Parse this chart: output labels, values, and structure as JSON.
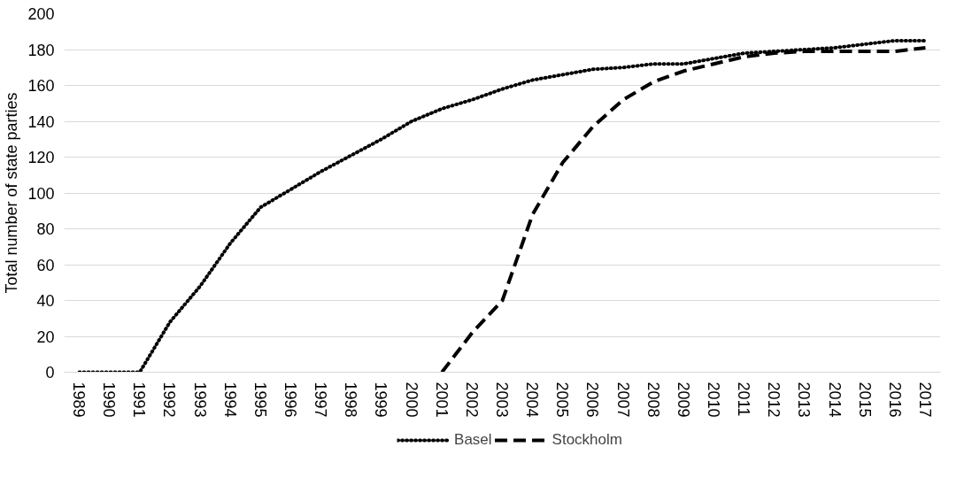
{
  "chart_data": {
    "type": "line",
    "ylabel": "Total number of state parties",
    "categories": [
      "1989",
      "1990",
      "1991",
      "1992",
      "1993",
      "1994",
      "1995",
      "1996",
      "1997",
      "1998",
      "1999",
      "2000",
      "2001",
      "2002",
      "2003",
      "2004",
      "2005",
      "2006",
      "2007",
      "2008",
      "2009",
      "2010",
      "2011",
      "2012",
      "2013",
      "2014",
      "2015",
      "2016",
      "2017"
    ],
    "series": [
      {
        "name": "Basel",
        "color": "#000000",
        "line_style": "dotted",
        "values": [
          0,
          0,
          0,
          28,
          48,
          72,
          92,
          102,
          112,
          121,
          130,
          140,
          147,
          152,
          158,
          163,
          166,
          169,
          170,
          172,
          172,
          175,
          178,
          179,
          180,
          181,
          183,
          185,
          185
        ]
      },
      {
        "name": "Stockholm",
        "color": "#000000",
        "line_style": "dashed",
        "values": [
          null,
          null,
          null,
          null,
          null,
          null,
          null,
          null,
          null,
          null,
          null,
          null,
          0,
          22,
          40,
          88,
          117,
          137,
          152,
          162,
          168,
          172,
          176,
          178,
          179,
          179,
          179,
          179,
          181
        ]
      }
    ],
    "ylim": [
      0,
      200
    ],
    "yticks": [
      0,
      20,
      40,
      60,
      80,
      100,
      120,
      140,
      160,
      180,
      200
    ],
    "grid": "y",
    "legend": "bottom"
  }
}
